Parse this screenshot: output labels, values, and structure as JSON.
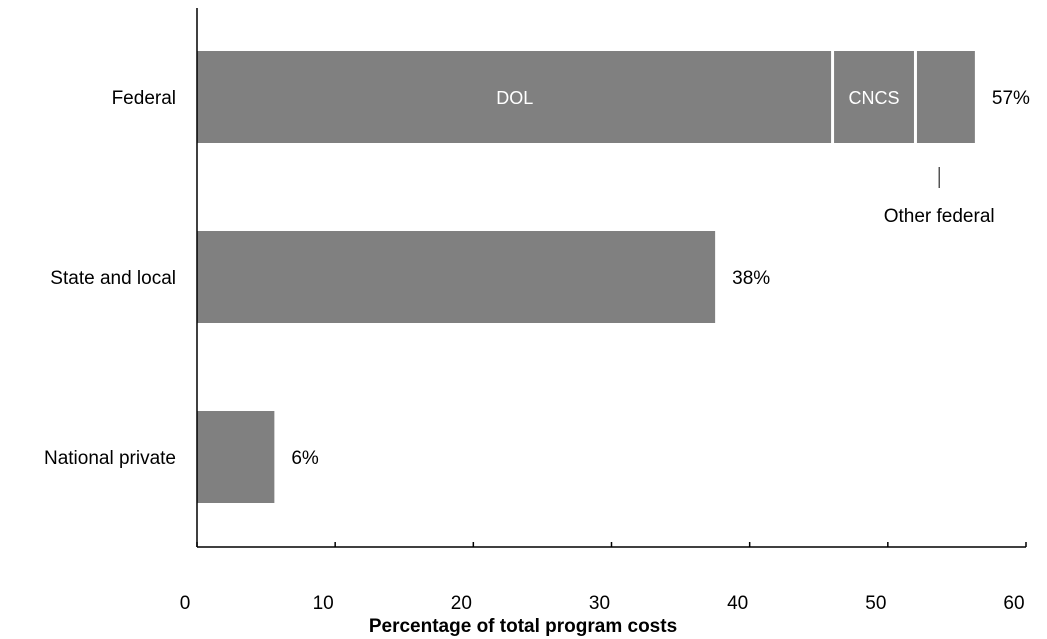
{
  "chart_data": {
    "type": "bar",
    "orientation": "horizontal",
    "stacked": true,
    "xlabel": "Percentage of total program costs",
    "xlim": [
      0,
      60
    ],
    "xticks": [
      0,
      10,
      20,
      30,
      40,
      50,
      60
    ],
    "grid": false,
    "categories": [
      "Federal",
      "State and local",
      "National private"
    ],
    "totals": [
      57,
      38,
      6
    ],
    "total_labels": [
      "57%",
      "38%",
      "6%"
    ],
    "segments": [
      [
        {
          "name": "DOL",
          "value": 46,
          "show_label": true
        },
        {
          "name": "CNCS",
          "value": 6,
          "show_label": true
        },
        {
          "name": "Other federal",
          "value": 4.3,
          "show_label": false
        }
      ],
      [
        {
          "name": "",
          "value": 37.5,
          "show_label": false
        }
      ],
      [
        {
          "name": "",
          "value": 5.6,
          "show_label": false
        }
      ]
    ],
    "annotations": [
      {
        "text": "Other federal",
        "category": "Federal",
        "segment": "Other federal"
      }
    ],
    "colors": {
      "bar": "#808080",
      "divider": "#ffffff",
      "axis": "#000000"
    }
  }
}
